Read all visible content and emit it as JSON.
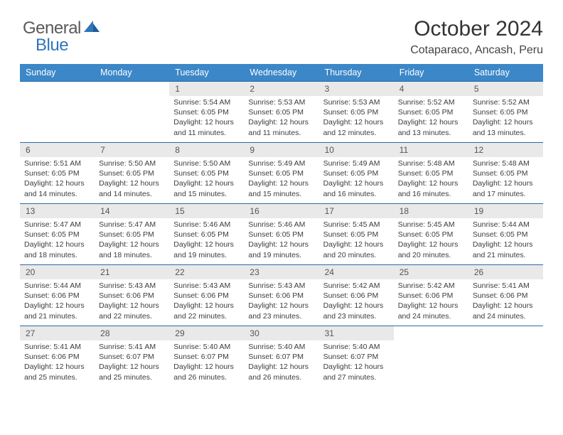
{
  "logo": {
    "general": "General",
    "blue": "Blue"
  },
  "header": {
    "month_title": "October 2024",
    "location": "Cotaparaco, Ancash, Peru"
  },
  "columns": [
    "Sunday",
    "Monday",
    "Tuesday",
    "Wednesday",
    "Thursday",
    "Friday",
    "Saturday"
  ],
  "colors": {
    "header_bg": "#3b87c8",
    "header_fg": "#ffffff",
    "daynum_bg": "#e9e9e9",
    "rule": "#2b6aa3",
    "accent": "#2f76bb"
  },
  "weeks": [
    [
      {
        "n": "",
        "sr": "",
        "ss": "",
        "dl1": "",
        "dl2": "",
        "empty": true
      },
      {
        "n": "",
        "sr": "",
        "ss": "",
        "dl1": "",
        "dl2": "",
        "empty": true
      },
      {
        "n": "1",
        "sr": "Sunrise: 5:54 AM",
        "ss": "Sunset: 6:05 PM",
        "dl1": "Daylight: 12 hours",
        "dl2": "and 11 minutes."
      },
      {
        "n": "2",
        "sr": "Sunrise: 5:53 AM",
        "ss": "Sunset: 6:05 PM",
        "dl1": "Daylight: 12 hours",
        "dl2": "and 11 minutes."
      },
      {
        "n": "3",
        "sr": "Sunrise: 5:53 AM",
        "ss": "Sunset: 6:05 PM",
        "dl1": "Daylight: 12 hours",
        "dl2": "and 12 minutes."
      },
      {
        "n": "4",
        "sr": "Sunrise: 5:52 AM",
        "ss": "Sunset: 6:05 PM",
        "dl1": "Daylight: 12 hours",
        "dl2": "and 13 minutes."
      },
      {
        "n": "5",
        "sr": "Sunrise: 5:52 AM",
        "ss": "Sunset: 6:05 PM",
        "dl1": "Daylight: 12 hours",
        "dl2": "and 13 minutes."
      }
    ],
    [
      {
        "n": "6",
        "sr": "Sunrise: 5:51 AM",
        "ss": "Sunset: 6:05 PM",
        "dl1": "Daylight: 12 hours",
        "dl2": "and 14 minutes."
      },
      {
        "n": "7",
        "sr": "Sunrise: 5:50 AM",
        "ss": "Sunset: 6:05 PM",
        "dl1": "Daylight: 12 hours",
        "dl2": "and 14 minutes."
      },
      {
        "n": "8",
        "sr": "Sunrise: 5:50 AM",
        "ss": "Sunset: 6:05 PM",
        "dl1": "Daylight: 12 hours",
        "dl2": "and 15 minutes."
      },
      {
        "n": "9",
        "sr": "Sunrise: 5:49 AM",
        "ss": "Sunset: 6:05 PM",
        "dl1": "Daylight: 12 hours",
        "dl2": "and 15 minutes."
      },
      {
        "n": "10",
        "sr": "Sunrise: 5:49 AM",
        "ss": "Sunset: 6:05 PM",
        "dl1": "Daylight: 12 hours",
        "dl2": "and 16 minutes."
      },
      {
        "n": "11",
        "sr": "Sunrise: 5:48 AM",
        "ss": "Sunset: 6:05 PM",
        "dl1": "Daylight: 12 hours",
        "dl2": "and 16 minutes."
      },
      {
        "n": "12",
        "sr": "Sunrise: 5:48 AM",
        "ss": "Sunset: 6:05 PM",
        "dl1": "Daylight: 12 hours",
        "dl2": "and 17 minutes."
      }
    ],
    [
      {
        "n": "13",
        "sr": "Sunrise: 5:47 AM",
        "ss": "Sunset: 6:05 PM",
        "dl1": "Daylight: 12 hours",
        "dl2": "and 18 minutes."
      },
      {
        "n": "14",
        "sr": "Sunrise: 5:47 AM",
        "ss": "Sunset: 6:05 PM",
        "dl1": "Daylight: 12 hours",
        "dl2": "and 18 minutes."
      },
      {
        "n": "15",
        "sr": "Sunrise: 5:46 AM",
        "ss": "Sunset: 6:05 PM",
        "dl1": "Daylight: 12 hours",
        "dl2": "and 19 minutes."
      },
      {
        "n": "16",
        "sr": "Sunrise: 5:46 AM",
        "ss": "Sunset: 6:05 PM",
        "dl1": "Daylight: 12 hours",
        "dl2": "and 19 minutes."
      },
      {
        "n": "17",
        "sr": "Sunrise: 5:45 AM",
        "ss": "Sunset: 6:05 PM",
        "dl1": "Daylight: 12 hours",
        "dl2": "and 20 minutes."
      },
      {
        "n": "18",
        "sr": "Sunrise: 5:45 AM",
        "ss": "Sunset: 6:05 PM",
        "dl1": "Daylight: 12 hours",
        "dl2": "and 20 minutes."
      },
      {
        "n": "19",
        "sr": "Sunrise: 5:44 AM",
        "ss": "Sunset: 6:05 PM",
        "dl1": "Daylight: 12 hours",
        "dl2": "and 21 minutes."
      }
    ],
    [
      {
        "n": "20",
        "sr": "Sunrise: 5:44 AM",
        "ss": "Sunset: 6:06 PM",
        "dl1": "Daylight: 12 hours",
        "dl2": "and 21 minutes."
      },
      {
        "n": "21",
        "sr": "Sunrise: 5:43 AM",
        "ss": "Sunset: 6:06 PM",
        "dl1": "Daylight: 12 hours",
        "dl2": "and 22 minutes."
      },
      {
        "n": "22",
        "sr": "Sunrise: 5:43 AM",
        "ss": "Sunset: 6:06 PM",
        "dl1": "Daylight: 12 hours",
        "dl2": "and 22 minutes."
      },
      {
        "n": "23",
        "sr": "Sunrise: 5:43 AM",
        "ss": "Sunset: 6:06 PM",
        "dl1": "Daylight: 12 hours",
        "dl2": "and 23 minutes."
      },
      {
        "n": "24",
        "sr": "Sunrise: 5:42 AM",
        "ss": "Sunset: 6:06 PM",
        "dl1": "Daylight: 12 hours",
        "dl2": "and 23 minutes."
      },
      {
        "n": "25",
        "sr": "Sunrise: 5:42 AM",
        "ss": "Sunset: 6:06 PM",
        "dl1": "Daylight: 12 hours",
        "dl2": "and 24 minutes."
      },
      {
        "n": "26",
        "sr": "Sunrise: 5:41 AM",
        "ss": "Sunset: 6:06 PM",
        "dl1": "Daylight: 12 hours",
        "dl2": "and 24 minutes."
      }
    ],
    [
      {
        "n": "27",
        "sr": "Sunrise: 5:41 AM",
        "ss": "Sunset: 6:06 PM",
        "dl1": "Daylight: 12 hours",
        "dl2": "and 25 minutes."
      },
      {
        "n": "28",
        "sr": "Sunrise: 5:41 AM",
        "ss": "Sunset: 6:07 PM",
        "dl1": "Daylight: 12 hours",
        "dl2": "and 25 minutes."
      },
      {
        "n": "29",
        "sr": "Sunrise: 5:40 AM",
        "ss": "Sunset: 6:07 PM",
        "dl1": "Daylight: 12 hours",
        "dl2": "and 26 minutes."
      },
      {
        "n": "30",
        "sr": "Sunrise: 5:40 AM",
        "ss": "Sunset: 6:07 PM",
        "dl1": "Daylight: 12 hours",
        "dl2": "and 26 minutes."
      },
      {
        "n": "31",
        "sr": "Sunrise: 5:40 AM",
        "ss": "Sunset: 6:07 PM",
        "dl1": "Daylight: 12 hours",
        "dl2": "and 27 minutes."
      },
      {
        "n": "",
        "sr": "",
        "ss": "",
        "dl1": "",
        "dl2": "",
        "empty": true
      },
      {
        "n": "",
        "sr": "",
        "ss": "",
        "dl1": "",
        "dl2": "",
        "empty": true
      }
    ]
  ]
}
